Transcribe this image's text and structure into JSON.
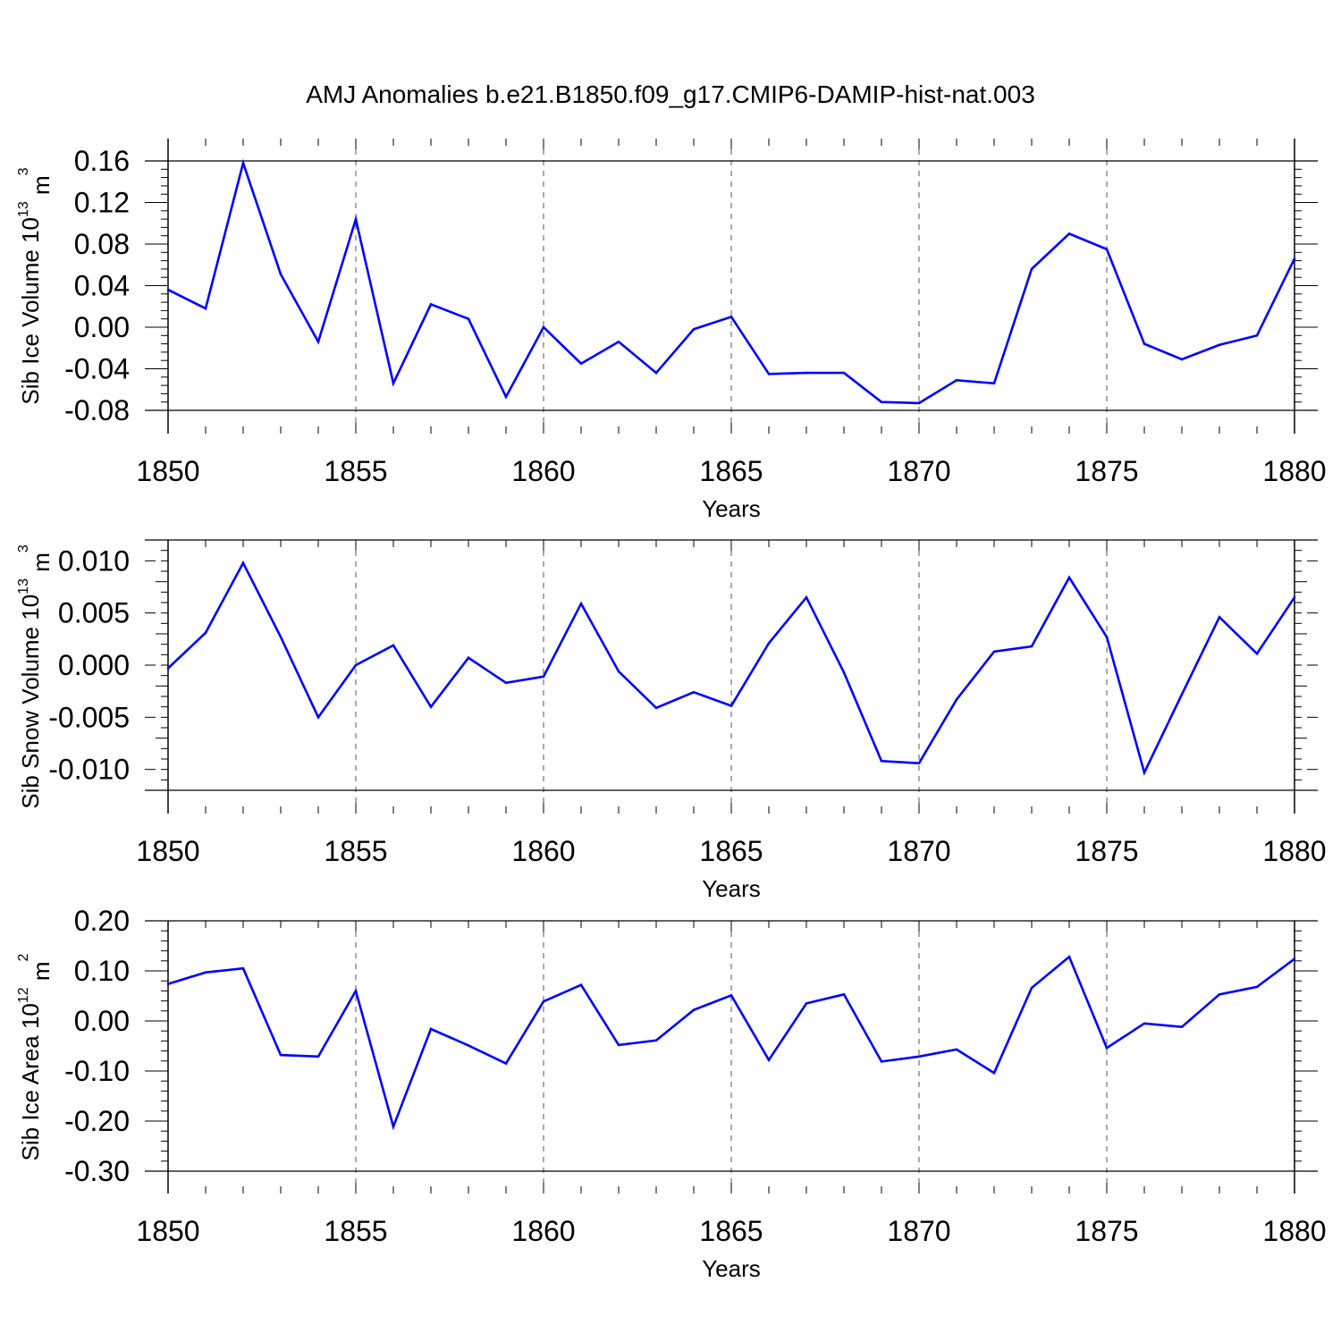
{
  "title": "AMJ Anomalies b.e21.B1850.f09_g17.CMIP6-DAMIP-hist-nat.003",
  "colors": {
    "line": "#0000ff",
    "axis": "#000000",
    "grid": "#555555"
  },
  "chart_data": [
    {
      "type": "line",
      "xlabel": "Years",
      "ylabel": {
        "text": "Sib Ice Volume 10",
        "exp": "13",
        "unit": " m",
        "unit_exp": "3"
      },
      "xlim": [
        1850,
        1880
      ],
      "ylim": [
        -0.08,
        0.16
      ],
      "xticks": [
        1850,
        1855,
        1860,
        1865,
        1870,
        1875,
        1880
      ],
      "yticks": [
        -0.08,
        -0.04,
        0.0,
        0.04,
        0.08,
        0.12,
        0.16
      ],
      "ytick_labels": [
        "-0.08",
        "-0.04",
        "0.00",
        "0.04",
        "0.08",
        "0.12",
        "0.16"
      ],
      "grid": "dashed vertical at major x ticks",
      "x": [
        1850,
        1851,
        1852,
        1853,
        1854,
        1855,
        1856,
        1857,
        1858,
        1859,
        1860,
        1861,
        1862,
        1863,
        1864,
        1865,
        1866,
        1867,
        1868,
        1869,
        1870,
        1871,
        1872,
        1873,
        1874,
        1875,
        1876,
        1877,
        1878,
        1879,
        1880
      ],
      "values": [
        0.036,
        0.018,
        0.158,
        0.051,
        -0.014,
        0.104,
        -0.054,
        0.022,
        0.008,
        -0.067,
        0.0,
        -0.035,
        -0.014,
        -0.044,
        -0.002,
        0.01,
        -0.045,
        -0.044,
        -0.044,
        -0.072,
        -0.073,
        -0.051,
        -0.054,
        0.056,
        0.09,
        0.075,
        -0.016,
        -0.031,
        -0.017,
        -0.008,
        0.066
      ]
    },
    {
      "type": "line",
      "xlabel": "Years",
      "ylabel": {
        "text": "Sib Snow Volume 10",
        "exp": "13",
        "unit": " m",
        "unit_exp": "3"
      },
      "xlim": [
        1850,
        1880
      ],
      "ylim": [
        -0.012,
        0.012
      ],
      "xticks": [
        1850,
        1855,
        1860,
        1865,
        1870,
        1875,
        1880
      ],
      "yticks": [
        -0.01,
        -0.005,
        0.0,
        0.005,
        0.01
      ],
      "ytick_labels": [
        "-0.010",
        "-0.005",
        "0.000",
        "0.005",
        "0.010"
      ],
      "grid": "dashed vertical at major x ticks",
      "x": [
        1850,
        1851,
        1852,
        1853,
        1854,
        1855,
        1856,
        1857,
        1858,
        1859,
        1860,
        1861,
        1862,
        1863,
        1864,
        1865,
        1866,
        1867,
        1868,
        1869,
        1870,
        1871,
        1872,
        1873,
        1874,
        1875,
        1876,
        1877,
        1878,
        1879,
        1880
      ],
      "values": [
        -0.0003,
        0.0031,
        0.0098,
        0.0027,
        -0.005,
        0.0,
        0.0019,
        -0.004,
        0.0007,
        -0.0017,
        -0.0011,
        0.0059,
        -0.0006,
        -0.0041,
        -0.0026,
        -0.0039,
        0.0021,
        0.0065,
        -0.0007,
        -0.0092,
        -0.0094,
        -0.0033,
        0.0013,
        0.0018,
        0.0084,
        0.0027,
        -0.0103,
        -0.0028,
        0.0046,
        0.0011,
        0.0065
      ]
    },
    {
      "type": "line",
      "xlabel": "Years",
      "ylabel": {
        "text": "Sib Ice Area 10",
        "exp": "12",
        "unit": " m",
        "unit_exp": "2"
      },
      "xlim": [
        1850,
        1880
      ],
      "ylim": [
        -0.3,
        0.2
      ],
      "xticks": [
        1850,
        1855,
        1860,
        1865,
        1870,
        1875,
        1880
      ],
      "yticks": [
        -0.3,
        -0.2,
        -0.1,
        0.0,
        0.1,
        0.2
      ],
      "ytick_labels": [
        "-0.30",
        "-0.20",
        "-0.10",
        "0.00",
        "0.10",
        "0.20"
      ],
      "grid": "dashed vertical at major x ticks",
      "x": [
        1850,
        1851,
        1852,
        1853,
        1854,
        1855,
        1856,
        1857,
        1858,
        1859,
        1860,
        1861,
        1862,
        1863,
        1864,
        1865,
        1866,
        1867,
        1868,
        1869,
        1870,
        1871,
        1872,
        1873,
        1874,
        1875,
        1876,
        1877,
        1878,
        1879,
        1880
      ],
      "values": [
        0.074,
        0.097,
        0.105,
        -0.068,
        -0.071,
        0.06,
        -0.211,
        -0.016,
        -0.049,
        -0.085,
        0.039,
        0.072,
        -0.048,
        -0.039,
        0.022,
        0.051,
        -0.078,
        0.035,
        0.053,
        -0.081,
        -0.071,
        -0.057,
        -0.104,
        0.066,
        0.128,
        -0.054,
        -0.005,
        -0.012,
        0.053,
        0.068,
        0.124
      ]
    }
  ]
}
